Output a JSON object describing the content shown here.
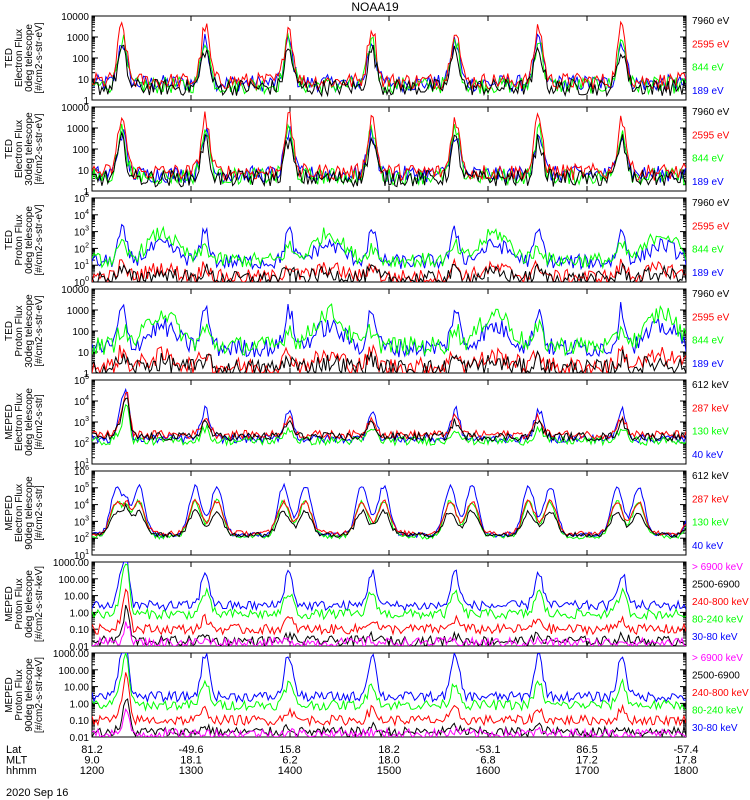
{
  "title": "NOAA19",
  "date_label": "2020 Sep 16",
  "colors": {
    "black": "#000000",
    "red": "#ff0000",
    "green": "#00ff00",
    "blue": "#0000ff",
    "magenta": "#ff00ff",
    "frame": "#000000"
  },
  "chart_data": [
    {
      "type": "line",
      "ylabel": [
        "TED",
        "Electron Flux",
        "0deg telescope",
        "[#/cm2-s-str-eV]"
      ],
      "yscale": "log",
      "ylim": [
        1,
        10000
      ],
      "ytick_values": [
        1,
        10,
        100,
        1000,
        10000
      ],
      "ytick_labels": [
        "1",
        "10",
        "100",
        "1000",
        "10000"
      ],
      "legend": [
        {
          "label": "7960 eV",
          "color": "black"
        },
        {
          "label": "2595 eV",
          "color": "red"
        },
        {
          "label": "844 eV",
          "color": "green"
        },
        {
          "label": "189 eV",
          "color": "blue"
        }
      ],
      "shape": "ted_e"
    },
    {
      "type": "line",
      "ylabel": [
        "TED",
        "Electron Flux",
        "30deg telescope",
        "[#/cm2-s-str-eV]"
      ],
      "yscale": "log",
      "ylim": [
        1,
        10000
      ],
      "ytick_values": [
        1,
        10,
        100,
        1000,
        10000
      ],
      "ytick_labels": [
        "1",
        "10",
        "100",
        "1000",
        "10000"
      ],
      "legend": [
        {
          "label": "7960 eV",
          "color": "black"
        },
        {
          "label": "2595 eV",
          "color": "red"
        },
        {
          "label": "844 eV",
          "color": "green"
        },
        {
          "label": "189 eV",
          "color": "blue"
        }
      ],
      "shape": "ted_e"
    },
    {
      "type": "line",
      "ylabel": [
        "TED",
        "Proton Flux",
        "0deg telescope",
        "[#/cm2-s-str-eV]"
      ],
      "yscale": "log",
      "ylim": [
        1,
        100000
      ],
      "ytick_values": [
        1,
        10,
        100,
        1000,
        10000,
        100000
      ],
      "ytick_labels": [
        "10^0",
        "10^1",
        "10^2",
        "10^3",
        "10^4",
        "10^5"
      ],
      "legend": [
        {
          "label": "7960 eV",
          "color": "black"
        },
        {
          "label": "2595 eV",
          "color": "red"
        },
        {
          "label": "844 eV",
          "color": "green"
        },
        {
          "label": "189 eV",
          "color": "blue"
        }
      ],
      "shape": "ted_p"
    },
    {
      "type": "line",
      "ylabel": [
        "TED",
        "Proton Flux",
        "30deg telescope",
        "[#/cm2-s-str-eV]"
      ],
      "yscale": "log",
      "ylim": [
        1,
        10000
      ],
      "ytick_values": [
        1,
        10,
        100,
        1000,
        10000
      ],
      "ytick_labels": [
        "1",
        "10",
        "100",
        "1000",
        "10000"
      ],
      "legend": [
        {
          "label": "7960 eV",
          "color": "black"
        },
        {
          "label": "2595 eV",
          "color": "red"
        },
        {
          "label": "844 eV",
          "color": "green"
        },
        {
          "label": "189 eV",
          "color": "blue"
        }
      ],
      "shape": "ted_p"
    },
    {
      "type": "line",
      "ylabel": [
        "MEPED",
        "Electron Flux",
        "0deg telescope",
        "[#/cm2-s-str]"
      ],
      "yscale": "log",
      "ylim": [
        10,
        100000
      ],
      "ytick_values": [
        10,
        100,
        1000,
        10000,
        100000
      ],
      "ytick_labels": [
        "10^1",
        "10^2",
        "10^3",
        "10^4",
        "10^5"
      ],
      "legend": [
        {
          "label": "612 keV",
          "color": "black"
        },
        {
          "label": "287 keV",
          "color": "red"
        },
        {
          "label": "130 keV",
          "color": "green"
        },
        {
          "label": "40 keV",
          "color": "blue"
        }
      ],
      "shape": "mep_e0"
    },
    {
      "type": "line",
      "ylabel": [
        "MEPED",
        "Electron Flux",
        "90deg telescope",
        "[#/cm2-s-str]"
      ],
      "yscale": "log",
      "ylim": [
        10,
        1000000
      ],
      "ytick_values": [
        10,
        100,
        1000,
        10000,
        100000,
        1000000
      ],
      "ytick_labels": [
        "10^1",
        "10^2",
        "10^3",
        "10^4",
        "10^5",
        "10^6"
      ],
      "legend": [
        {
          "label": "612 keV",
          "color": "black"
        },
        {
          "label": "287 keV",
          "color": "red"
        },
        {
          "label": "130 keV",
          "color": "green"
        },
        {
          "label": "40 keV",
          "color": "blue"
        }
      ],
      "shape": "mep_e90"
    },
    {
      "type": "line",
      "ylabel": [
        "MEPED",
        "Proton Flux",
        "0deg telescope",
        "[#/cm2-s-str-keV]"
      ],
      "yscale": "log",
      "ylim": [
        0.01,
        1000
      ],
      "ytick_values": [
        0.01,
        0.1,
        1,
        10,
        100,
        1000
      ],
      "ytick_labels": [
        "0.01",
        "0.10",
        "1.00",
        "10.00",
        "100.00",
        "1000.00"
      ],
      "legend": [
        {
          "label": "> 6900 keV",
          "color": "magenta"
        },
        {
          "label": "2500-6900",
          "color": "black"
        },
        {
          "label": "240-800 keV",
          "color": "red"
        },
        {
          "label": "80-240 keV",
          "color": "green"
        },
        {
          "label": "30-80 keV",
          "color": "blue"
        }
      ],
      "shape": "mep_p0"
    },
    {
      "type": "line",
      "ylabel": [
        "MEPED",
        "Proton Flux",
        "90deg telescope",
        "[#/cm2-s-str-keV]"
      ],
      "yscale": "log",
      "ylim": [
        0.01,
        1000
      ],
      "ytick_values": [
        0.01,
        0.1,
        1,
        10,
        100,
        1000
      ],
      "ytick_labels": [
        "0.01",
        "0.10",
        "1.00",
        "10.00",
        "100.00",
        "1000.00"
      ],
      "legend": [
        {
          "label": "> 6900 keV",
          "color": "magenta"
        },
        {
          "label": "2500-6900",
          "color": "black"
        },
        {
          "label": "240-800 keV",
          "color": "red"
        },
        {
          "label": "80-240 keV",
          "color": "green"
        },
        {
          "label": "30-80 keV",
          "color": "blue"
        }
      ],
      "shape": "mep_p90"
    }
  ],
  "x_axis": {
    "rows": [
      {
        "label": "Lat",
        "values": [
          "81.2",
          "-49.6",
          "15.8",
          "18.2",
          "-53.1",
          "86.5",
          "-57.4"
        ]
      },
      {
        "label": "MLT",
        "values": [
          "9.0",
          "18.1",
          "6.2",
          "18.0",
          "6.8",
          "17.2",
          "17.8"
        ]
      },
      {
        "label": "hhmm",
        "values": [
          "1200",
          "1300",
          "1400",
          "1500",
          "1600",
          "1700",
          "1800"
        ]
      }
    ],
    "time_hours": [
      12,
      13,
      14,
      15,
      16,
      17,
      18
    ],
    "xlim_hours": [
      12,
      18
    ]
  }
}
